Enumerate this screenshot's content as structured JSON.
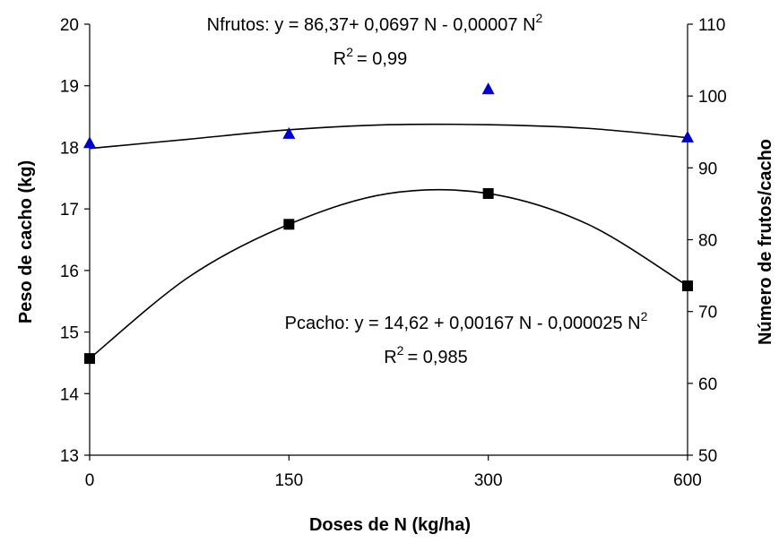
{
  "chart_data": {
    "type": "scatter",
    "xlabel": "Doses de N (kg/ha)",
    "ylabel_left": "Peso de cacho (kg)",
    "ylabel_right": "Número de frutos/cacho",
    "categories": [
      "0",
      "150",
      "300",
      "600"
    ],
    "left_axis": {
      "min": 13,
      "max": 20,
      "ticks": [
        13,
        14,
        15,
        16,
        17,
        18,
        19,
        20
      ]
    },
    "right_axis": {
      "min": 50,
      "max": 110,
      "ticks": [
        50,
        60,
        70,
        80,
        90,
        100,
        110
      ]
    },
    "series": [
      {
        "name": "Pcacho",
        "axis": "left",
        "marker": "square",
        "color": "#000000",
        "values": [
          14.57,
          16.75,
          17.25,
          15.75
        ],
        "equation_prefix": "Pcacho: y = 14,62 + 0,00167 N - 0,000025 N",
        "r2_value": "= 0,985",
        "curve": [
          [
            0,
            14.57
          ],
          [
            0.5,
            15.9
          ],
          [
            1,
            16.75
          ],
          [
            1.5,
            17.25
          ],
          [
            2,
            17.25
          ],
          [
            2.5,
            16.75
          ],
          [
            3,
            15.75
          ]
        ]
      },
      {
        "name": "Nfrutos",
        "axis": "right",
        "marker": "triangle",
        "color": "#0000cc",
        "values": [
          93.5,
          94.8,
          101,
          94.3
        ],
        "equation_prefix": "Nfrutos: y = 86,37+ 0,0697 N - 0,00007 N",
        "r2_value": "= 0,99",
        "curve": [
          [
            0,
            92.7
          ],
          [
            0.5,
            94.0
          ],
          [
            1,
            95.3
          ],
          [
            1.5,
            96.0
          ],
          [
            2,
            96.0
          ],
          [
            2.5,
            95.5
          ],
          [
            3,
            94.2
          ]
        ]
      }
    ],
    "equation_superscript": "2",
    "r2_symbol": "R"
  }
}
